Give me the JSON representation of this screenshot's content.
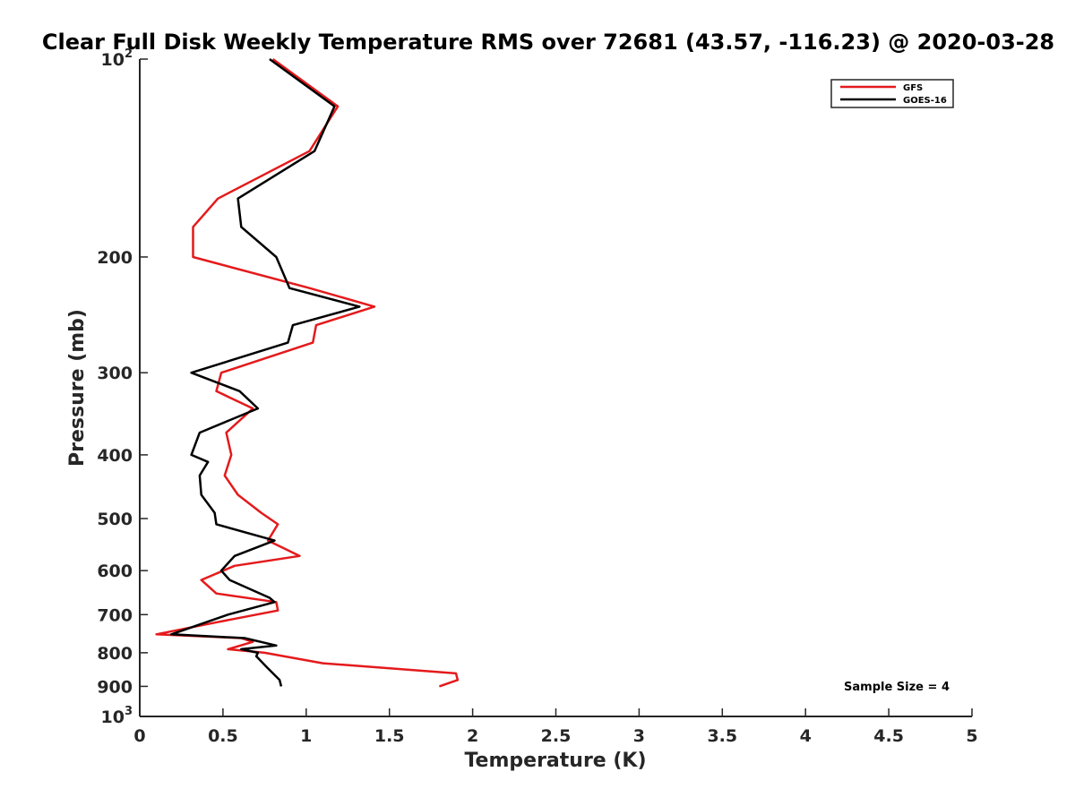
{
  "chart_data": {
    "type": "line",
    "title": "Clear Full Disk Weekly Temperature RMS over 72681 (43.57, -116.23) @ 2020-03-28",
    "xlabel": "Temperature (K)",
    "ylabel": "Pressure (mb)",
    "xlim": [
      0,
      5
    ],
    "ylim": [
      100,
      1000
    ],
    "y_scale": "log",
    "y_reversed": true,
    "x_ticks": [
      {
        "value": 0,
        "label": "0"
      },
      {
        "value": 0.5,
        "label": "0.5"
      },
      {
        "value": 1,
        "label": "1"
      },
      {
        "value": 1.5,
        "label": "1.5"
      },
      {
        "value": 2,
        "label": "2"
      },
      {
        "value": 2.5,
        "label": "2.5"
      },
      {
        "value": 3,
        "label": "3"
      },
      {
        "value": 3.5,
        "label": "3.5"
      },
      {
        "value": 4,
        "label": "4"
      },
      {
        "value": 4.5,
        "label": "4.5"
      },
      {
        "value": 5,
        "label": "5"
      }
    ],
    "y_ticks": [
      {
        "value": 100,
        "label": "10",
        "exp": "2"
      },
      {
        "value": 200,
        "label": "200"
      },
      {
        "value": 300,
        "label": "300"
      },
      {
        "value": 400,
        "label": "400"
      },
      {
        "value": 500,
        "label": "500"
      },
      {
        "value": 600,
        "label": "600"
      },
      {
        "value": 700,
        "label": "700"
      },
      {
        "value": 800,
        "label": "800"
      },
      {
        "value": 900,
        "label": "900"
      },
      {
        "value": 1000,
        "label": "10",
        "exp": "3"
      }
    ],
    "grid": false,
    "legend_position": "top-right",
    "annotation": "Sample Size = 4",
    "series": [
      {
        "name": "GFS",
        "color": "#e41a1c",
        "points": [
          [
            0.8,
            100
          ],
          [
            1.19,
            118
          ],
          [
            1.02,
            138
          ],
          [
            0.47,
            163
          ],
          [
            0.32,
            180
          ],
          [
            0.32,
            200
          ],
          [
            1.02,
            223
          ],
          [
            1.41,
            238
          ],
          [
            1.06,
            254
          ],
          [
            1.04,
            270
          ],
          [
            0.49,
            300
          ],
          [
            0.46,
            320
          ],
          [
            0.68,
            340
          ],
          [
            0.52,
            370
          ],
          [
            0.55,
            400
          ],
          [
            0.51,
            430
          ],
          [
            0.59,
            460
          ],
          [
            0.73,
            490
          ],
          [
            0.83,
            510
          ],
          [
            0.77,
            540
          ],
          [
            0.96,
            570
          ],
          [
            0.57,
            590
          ],
          [
            0.37,
            620
          ],
          [
            0.46,
            650
          ],
          [
            0.82,
            670
          ],
          [
            0.83,
            690
          ],
          [
            0.45,
            720
          ],
          [
            0.1,
            750
          ],
          [
            0.61,
            760
          ],
          [
            0.68,
            770
          ],
          [
            0.53,
            790
          ],
          [
            0.75,
            800
          ],
          [
            1.1,
            830
          ],
          [
            1.9,
            860
          ],
          [
            1.91,
            880
          ],
          [
            1.8,
            900
          ]
        ]
      },
      {
        "name": "GOES-16",
        "color": "#000000",
        "points": [
          [
            0.78,
            100
          ],
          [
            1.17,
            118
          ],
          [
            1.05,
            138
          ],
          [
            0.59,
            163
          ],
          [
            0.61,
            180
          ],
          [
            0.82,
            200
          ],
          [
            0.9,
            223
          ],
          [
            1.32,
            238
          ],
          [
            0.92,
            254
          ],
          [
            0.89,
            270
          ],
          [
            0.31,
            300
          ],
          [
            0.6,
            320
          ],
          [
            0.71,
            340
          ],
          [
            0.36,
            370
          ],
          [
            0.31,
            400
          ],
          [
            0.41,
            410
          ],
          [
            0.36,
            430
          ],
          [
            0.37,
            460
          ],
          [
            0.45,
            490
          ],
          [
            0.46,
            510
          ],
          [
            0.81,
            540
          ],
          [
            0.57,
            570
          ],
          [
            0.49,
            600
          ],
          [
            0.54,
            620
          ],
          [
            0.78,
            660
          ],
          [
            0.81,
            670
          ],
          [
            0.53,
            700
          ],
          [
            0.19,
            750
          ],
          [
            0.63,
            760
          ],
          [
            0.82,
            780
          ],
          [
            0.61,
            790
          ],
          [
            0.71,
            800
          ],
          [
            0.7,
            810
          ],
          [
            0.76,
            840
          ],
          [
            0.84,
            880
          ],
          [
            0.85,
            900
          ]
        ]
      }
    ]
  }
}
